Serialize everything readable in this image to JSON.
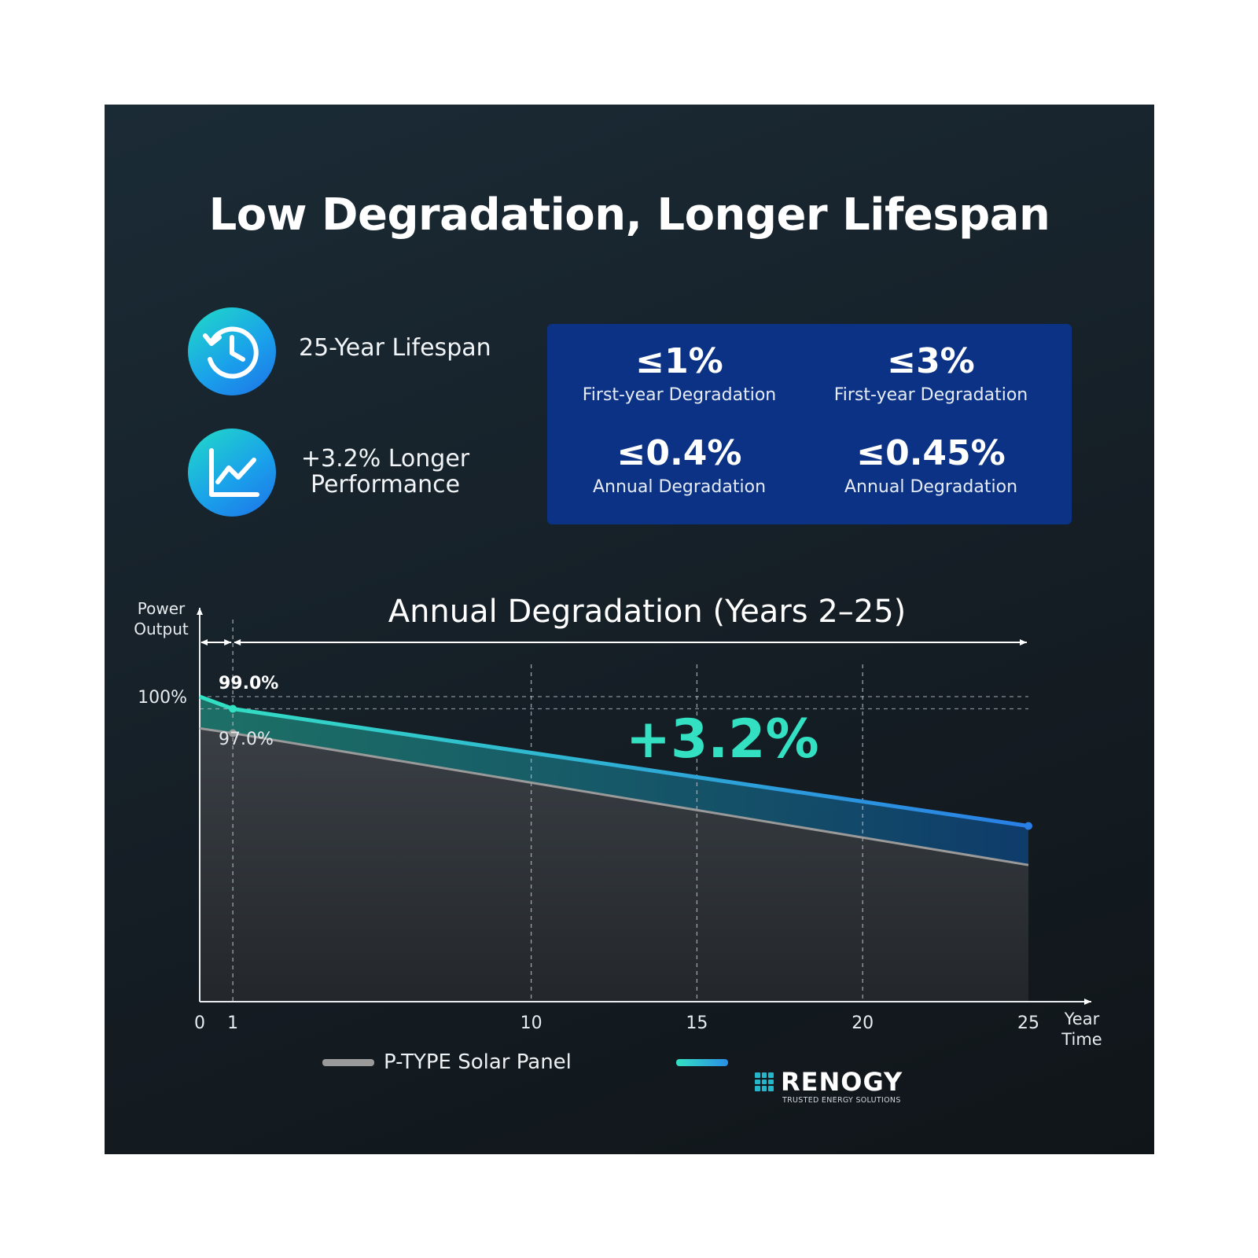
{
  "title": "Low Degradation, Longer Lifespan",
  "features": [
    {
      "icon": "clock-history-icon",
      "label": "25-Year Lifespan"
    },
    {
      "icon": "line-chart-icon",
      "label_line1": "+3.2% Longer",
      "label_line2": "Performance"
    }
  ],
  "stats": [
    {
      "value": "≤1%",
      "label": "First-year Degradation"
    },
    {
      "value": "≤3%",
      "label": "First-year Degradation"
    },
    {
      "value": "≤0.4%",
      "label": "Annual Degradation"
    },
    {
      "value": "≤0.45%",
      "label": "Annual Degradation"
    }
  ],
  "colors": {
    "accent_teal": "#33e0c2",
    "accent_blue": "#2a7fe6",
    "stats_box": "#0b3285",
    "ptype_line": "#9a9a9a"
  },
  "chart_data": {
    "type": "area",
    "title": "Annual Degradation (Years 2–25)",
    "ylabel_line1": "Power",
    "ylabel_line2": "Output",
    "xlabel_line1": "Year",
    "xlabel_line2": "Time",
    "x_ticks": [
      "0",
      "1",
      "10",
      "15",
      "20",
      "25"
    ],
    "x_tick_values": [
      0,
      1,
      10,
      15,
      20,
      25
    ],
    "y_tick_label": "100%",
    "y_tick_value": 100,
    "xlim": [
      0,
      25
    ],
    "ylim": [
      0,
      100
    ],
    "grid": "dashed verticals at years 1, 10, 15, 20",
    "series": [
      {
        "name": "RENOGY",
        "color": "#33e0c2",
        "x": [
          0,
          1,
          25
        ],
        "y": [
          100,
          99.0,
          89.4
        ]
      },
      {
        "name": "P-TYPE Solar Panel",
        "color": "#9a9a9a",
        "x": [
          0,
          1,
          25
        ],
        "y": [
          97.4,
          97.0,
          86.2
        ]
      }
    ],
    "annotations": {
      "renogy_year1": "99.0%",
      "ptype_year1": "97.0%",
      "gain": "+3.2%"
    },
    "legend": [
      {
        "label": "P-TYPE Solar Panel",
        "color": "#9a9a9a"
      },
      {
        "label": "RENOGY",
        "tagline": "TRUSTED ENERGY SOLUTIONS",
        "color": "#2ab8e0"
      }
    ]
  }
}
